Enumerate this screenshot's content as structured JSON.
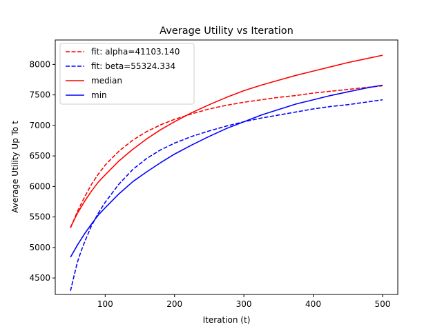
{
  "chart_data": {
    "type": "line",
    "title": "Average Utility vs Iteration",
    "xlabel": "Iteration (t)",
    "ylabel": "Average Utility Up To t",
    "xlim": [
      28,
      522
    ],
    "ylim": [
      4230,
      8400
    ],
    "xticks": [
      100,
      200,
      300,
      400,
      500
    ],
    "yticks": [
      4500,
      5000,
      5500,
      6000,
      6500,
      7000,
      7500,
      8000
    ],
    "grid": false,
    "legend_position": "top-left",
    "series": [
      {
        "name": "fit: alpha=41103.140",
        "color": "#ff0000",
        "dash": "dashed",
        "x": [
          50,
          60,
          70,
          80,
          90,
          100,
          120,
          140,
          160,
          180,
          200,
          225,
          250,
          275,
          300,
          325,
          350,
          375,
          400,
          425,
          450,
          475,
          500
        ],
        "y": [
          5320,
          5590,
          5820,
          6030,
          6200,
          6350,
          6580,
          6760,
          6900,
          7010,
          7100,
          7190,
          7270,
          7330,
          7380,
          7420,
          7460,
          7490,
          7530,
          7560,
          7590,
          7620,
          7650
        ]
      },
      {
        "name": "fit: beta=55324.334",
        "color": "#0000ff",
        "dash": "dashed",
        "x": [
          50,
          55,
          60,
          65,
          70,
          80,
          90,
          100,
          120,
          140,
          160,
          180,
          200,
          225,
          250,
          275,
          300,
          325,
          350,
          375,
          400,
          425,
          450,
          475,
          500
        ],
        "y": [
          4290,
          4530,
          4760,
          4930,
          5080,
          5350,
          5560,
          5740,
          6040,
          6280,
          6460,
          6600,
          6710,
          6820,
          6910,
          6990,
          7060,
          7120,
          7170,
          7220,
          7270,
          7310,
          7340,
          7380,
          7420
        ]
      },
      {
        "name": "median",
        "color": "#ff0000",
        "dash": "solid",
        "x": [
          50,
          60,
          70,
          80,
          90,
          100,
          120,
          140,
          160,
          180,
          200,
          225,
          250,
          275,
          300,
          325,
          350,
          375,
          400,
          425,
          450,
          475,
          500
        ],
        "y": [
          5330,
          5560,
          5750,
          5920,
          6070,
          6190,
          6420,
          6610,
          6780,
          6930,
          7060,
          7210,
          7340,
          7460,
          7570,
          7660,
          7740,
          7820,
          7890,
          7960,
          8030,
          8090,
          8150
        ]
      },
      {
        "name": "min",
        "color": "#0000ff",
        "dash": "solid",
        "x": [
          50,
          60,
          70,
          80,
          90,
          100,
          120,
          140,
          160,
          180,
          200,
          225,
          250,
          275,
          300,
          325,
          350,
          375,
          400,
          425,
          450,
          475,
          500
        ],
        "y": [
          4840,
          5040,
          5220,
          5380,
          5530,
          5650,
          5880,
          6080,
          6240,
          6390,
          6530,
          6680,
          6820,
          6950,
          7060,
          7170,
          7260,
          7350,
          7420,
          7490,
          7550,
          7610,
          7660
        ]
      }
    ]
  }
}
